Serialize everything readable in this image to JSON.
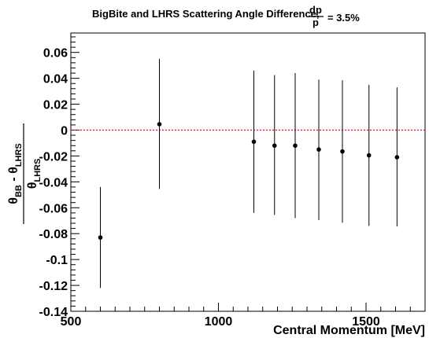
{
  "chart_data": {
    "type": "scatter",
    "title": "BigBite and LHRS Scattering Angle Difference,",
    "title_fraction": {
      "numerator": "dp",
      "denominator": "p"
    },
    "title_suffix": "= 3.5%",
    "xlabel": "Central Momentum [MeV]",
    "ylabel": {
      "numerator_symbol": "θ",
      "numerator_sub1": "BB",
      "numerator_op": " - ",
      "numerator_symbol2": "θ",
      "numerator_sub2": "LHRS",
      "denominator_symbol": "θ",
      "denominator_sub": "LHRS"
    },
    "xlim": [
      500,
      1700
    ],
    "ylim": [
      -0.14,
      0.075
    ],
    "x_ticks": [
      500,
      1000,
      1500
    ],
    "x_tick_labels": [
      "500",
      "1000",
      "1500"
    ],
    "y_ticks": [
      -0.14,
      -0.12,
      -0.1,
      -0.08,
      -0.06,
      -0.04,
      -0.02,
      0,
      0.02,
      0.04,
      0.06
    ],
    "y_tick_labels": [
      "-0.14",
      "-0.12",
      "-0.1",
      "-0.08",
      "-0.06",
      "-0.04",
      "-0.02",
      "0",
      "0.02",
      "0.04",
      "0.06"
    ],
    "reference_line": {
      "y": 0,
      "color": "#e8121b",
      "style": "dotted"
    },
    "marker_color": "#000000",
    "points": [
      {
        "x": 600,
        "y": -0.083,
        "ylo": -0.122,
        "yhi": -0.044
      },
      {
        "x": 800,
        "y": 0.0045,
        "ylo": -0.0455,
        "yhi": 0.055
      },
      {
        "x": 1120,
        "y": -0.009,
        "ylo": -0.064,
        "yhi": 0.046
      },
      {
        "x": 1190,
        "y": -0.012,
        "ylo": -0.0655,
        "yhi": 0.0425
      },
      {
        "x": 1260,
        "y": -0.012,
        "ylo": -0.068,
        "yhi": 0.044
      },
      {
        "x": 1340,
        "y": -0.015,
        "ylo": -0.0695,
        "yhi": 0.039
      },
      {
        "x": 1420,
        "y": -0.0165,
        "ylo": -0.0715,
        "yhi": 0.0385
      },
      {
        "x": 1510,
        "y": -0.0195,
        "ylo": -0.074,
        "yhi": 0.035
      },
      {
        "x": 1605,
        "y": -0.021,
        "ylo": -0.0745,
        "yhi": 0.033
      }
    ]
  }
}
